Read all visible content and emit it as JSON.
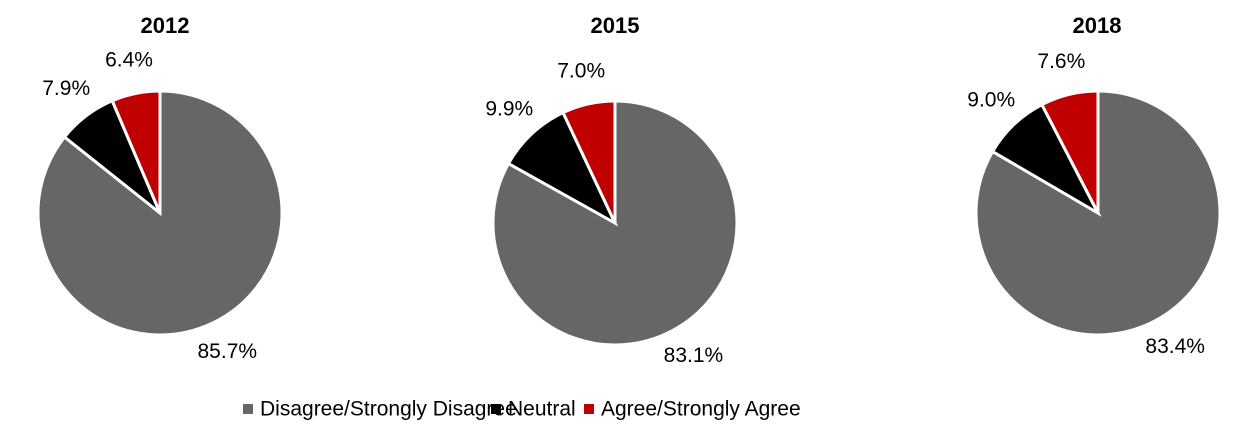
{
  "chart_data": [
    {
      "type": "pie",
      "title": "2012",
      "categories": [
        "Disagree/Strongly Disagree",
        "Neutral",
        "Agree/Strongly Agree"
      ],
      "values": [
        85.7,
        7.9,
        6.4
      ],
      "value_labels": [
        "85.7%",
        "7.9%",
        "6.4%"
      ],
      "colors": [
        "#666666",
        "#000000",
        "#c00000"
      ]
    },
    {
      "type": "pie",
      "title": "2015",
      "categories": [
        "Disagree/Strongly Disagree",
        "Neutral",
        "Agree/Strongly Agree"
      ],
      "values": [
        83.1,
        9.9,
        7.0
      ],
      "value_labels": [
        "83.1%",
        "9.9%",
        "7.0%"
      ],
      "colors": [
        "#666666",
        "#000000",
        "#c00000"
      ]
    },
    {
      "type": "pie",
      "title": "2018",
      "categories": [
        "Disagree/Strongly Disagree",
        "Neutral",
        "Agree/Strongly Agree"
      ],
      "values": [
        83.4,
        9.0,
        7.6
      ],
      "value_labels": [
        "83.4%",
        "9.0%",
        "7.6%"
      ],
      "colors": [
        "#666666",
        "#000000",
        "#c00000"
      ]
    }
  ]
}
